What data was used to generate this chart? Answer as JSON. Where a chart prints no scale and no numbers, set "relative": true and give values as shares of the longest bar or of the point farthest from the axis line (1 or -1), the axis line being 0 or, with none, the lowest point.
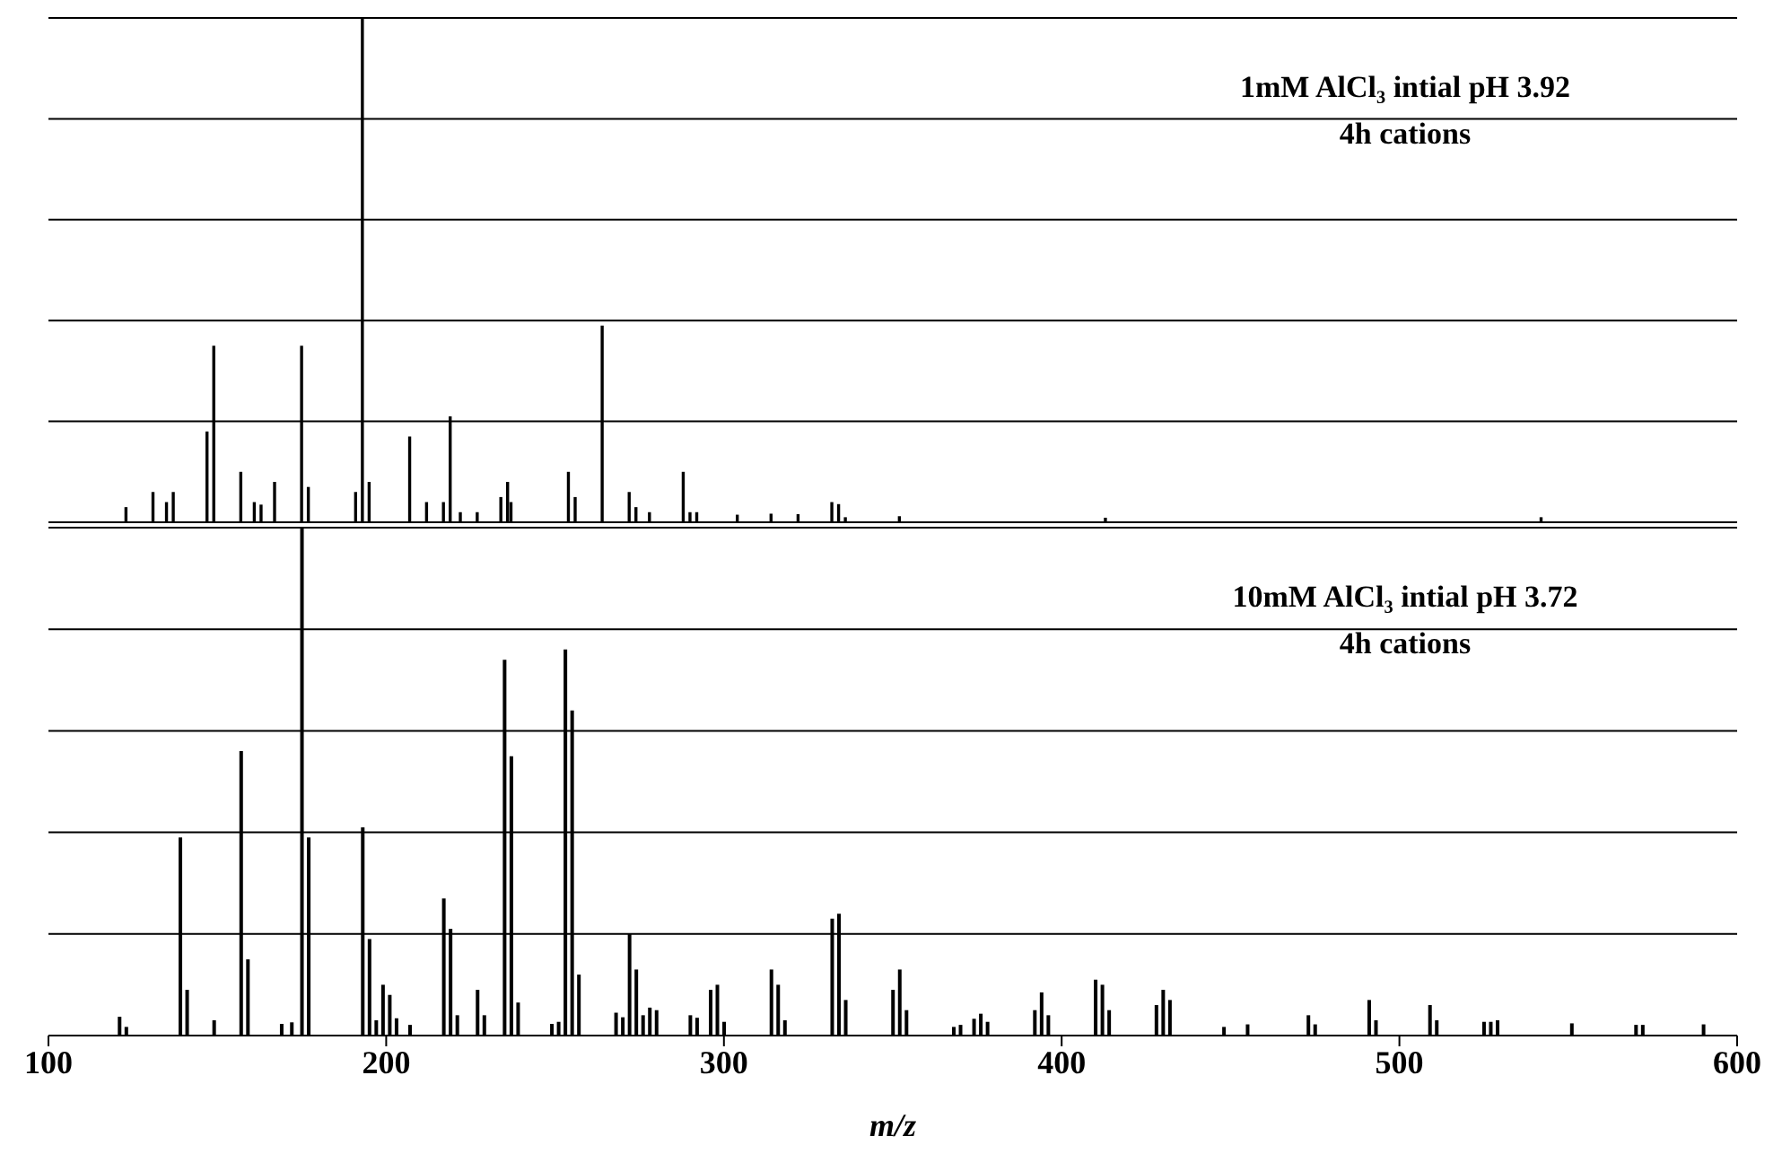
{
  "chart_data": [
    {
      "type": "bar",
      "title": "1mM AlCl₃ intial pH 3.92",
      "subtitle": "4h cations",
      "relative": true,
      "grid": "y",
      "tick_labels": false,
      "xlim": [
        100,
        600
      ],
      "xticks": [
        100,
        200,
        300,
        400,
        500,
        600
      ],
      "x": [
        123,
        131,
        135,
        137,
        147,
        149,
        157,
        161,
        163,
        167,
        175,
        177,
        191,
        193,
        195,
        207,
        212,
        217,
        219,
        222,
        227,
        234,
        236,
        237,
        254,
        256,
        264,
        272,
        274,
        278,
        288,
        290,
        292,
        304,
        314,
        322,
        332,
        334,
        336,
        352,
        413,
        542
      ],
      "series": [
        {
          "color": "#000000",
          "values": [
            0.03,
            0.06,
            0.04,
            0.06,
            0.18,
            0.35,
            0.1,
            0.04,
            0.035,
            0.08,
            0.35,
            0.07,
            0.06,
            1,
            0.08,
            0.17,
            0.04,
            0.04,
            0.21,
            0.02,
            0.02,
            0.05,
            0.08,
            0.04,
            0.1,
            0.05,
            0.39,
            0.06,
            0.03,
            0.02,
            0.1,
            0.02,
            0.02,
            0.015,
            0.017,
            0.016,
            0.04,
            0.036,
            0.01,
            0.012,
            0.009,
            0.01
          ]
        }
      ]
    },
    {
      "type": "bar",
      "title": "10mM AlCl₃ intial pH 3.72",
      "subtitle": "4h cations",
      "relative": true,
      "grid": "y",
      "tick_labels": "x",
      "xlabel": "m/z",
      "xlim": [
        100,
        600
      ],
      "xticks": [
        100,
        200,
        300,
        400,
        500,
        600
      ],
      "x": [
        121,
        123,
        139,
        141,
        149,
        157,
        159,
        169,
        172,
        175,
        177,
        193,
        195,
        197,
        199,
        201,
        203,
        207,
        217,
        219,
        221,
        227,
        229,
        235,
        237,
        239,
        249,
        251,
        253,
        255,
        257,
        268,
        270,
        272,
        274,
        276,
        278,
        280,
        290,
        292,
        296,
        298,
        300,
        314,
        316,
        318,
        332,
        334,
        336,
        350,
        352,
        354,
        368,
        370,
        374,
        376,
        378,
        392,
        394,
        396,
        410,
        412,
        414,
        428,
        430,
        432,
        448,
        455,
        473,
        475,
        491,
        493,
        509,
        511,
        525,
        527,
        529,
        551,
        570,
        572,
        590
      ],
      "series": [
        {
          "color": "#000000",
          "values": [
            0.037,
            0.017,
            0.39,
            0.09,
            0.03,
            0.56,
            0.15,
            0.023,
            0.026,
            1,
            0.39,
            0.41,
            0.19,
            0.03,
            0.1,
            0.08,
            0.034,
            0.021,
            0.27,
            0.21,
            0.04,
            0.09,
            0.04,
            0.74,
            0.55,
            0.065,
            0.023,
            0.027,
            0.76,
            0.64,
            0.12,
            0.045,
            0.036,
            0.2,
            0.13,
            0.04,
            0.055,
            0.05,
            0.04,
            0.035,
            0.09,
            0.1,
            0.027,
            0.13,
            0.1,
            0.03,
            0.23,
            0.24,
            0.07,
            0.09,
            0.13,
            0.05,
            0.017,
            0.021,
            0.033,
            0.043,
            0.027,
            0.05,
            0.085,
            0.04,
            0.11,
            0.1,
            0.05,
            0.06,
            0.09,
            0.07,
            0.017,
            0.022,
            0.04,
            0.022,
            0.07,
            0.03,
            0.06,
            0.03,
            0.027,
            0.027,
            0.03,
            0.024,
            0.021,
            0.021,
            0.022
          ]
        }
      ]
    }
  ]
}
